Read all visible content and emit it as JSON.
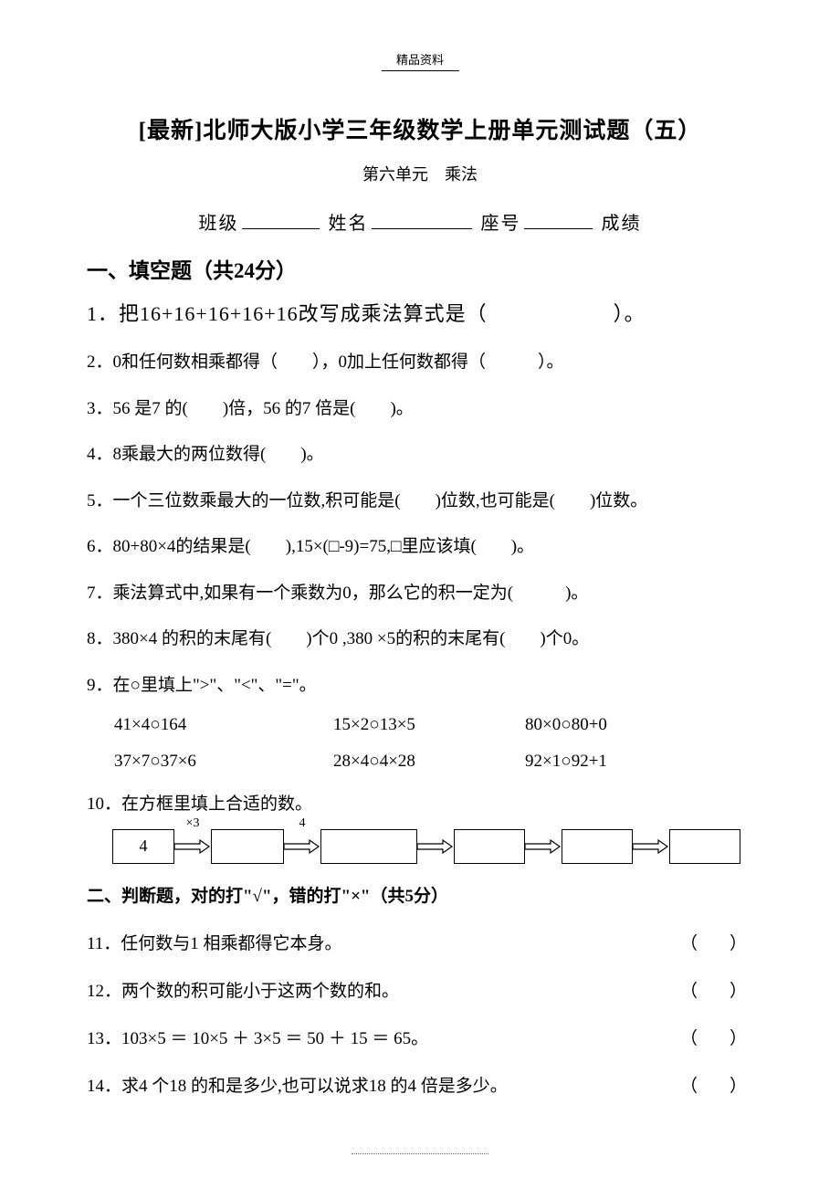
{
  "header": {
    "label": "精品资料"
  },
  "title": "[最新]北师大版小学三年级数学上册单元测试题（五）",
  "subtitle": "第六单元　乘法",
  "info": {
    "class_label": "班级",
    "name_label": "姓名",
    "seat_label": "座号",
    "score_label": "成绩",
    "blank_widths": {
      "class": 85,
      "name": 110,
      "seat": 75
    }
  },
  "section1": {
    "heading": "一、填空题（共24分）",
    "q1": "1．把16+16+16+16+16改写成乘法算式是（　　　　　　）。",
    "q2": "2．0和任何数相乘都得（　　），0加上任何数都得（　　　）。",
    "q3": "3．56 是7 的(　　)倍，56 的7 倍是(　　)。",
    "q4": "4．8乘最大的两位数得(　　)。",
    "q5": "5．一个三位数乘最大的一位数,积可能是(　　)位数,也可能是(　　)位数。",
    "q6": "6．80+80×4的结果是(　　),15×(□-9)=75,□里应该填(　　)。",
    "q7": "7．乘法算式中,如果有一个乘数为0，那么它的积一定为(　　　)。",
    "q8": "8．380×4 的积的末尾有(　　)个0 ,380 ×5的积的末尾有(　　)个0。",
    "q9_intro": "9．在○里填上\">\"、\"<\"、\"=\"。",
    "q9_row1": {
      "c1": "41×4○164",
      "c2": "15×2○13×5",
      "c3": "80×0○80+0"
    },
    "q9_row2": {
      "c1": "37×7○37×6",
      "c2": "28×4○4×28",
      "c3": "92×1○92+1"
    },
    "q10_intro": "10．在方框里填上合适的数。"
  },
  "flowchart": {
    "boxes": [
      {
        "value": "4",
        "width": 68
      },
      {
        "value": "",
        "width": 80
      },
      {
        "value": "",
        "width": 106
      },
      {
        "value": "",
        "width": 78
      },
      {
        "value": "",
        "width": 78
      },
      {
        "value": "",
        "width": 78
      }
    ],
    "arrows": [
      {
        "label": "×3",
        "width": 40
      },
      {
        "label": "4",
        "width": 40
      },
      {
        "label": "",
        "width": 40
      },
      {
        "label": "",
        "width": 40
      },
      {
        "label": "",
        "width": 40
      }
    ]
  },
  "section2": {
    "heading": "二、判断题，对的打\"√\"，错的打\"×\"（共5分）",
    "q11": "11．任何数与1 相乘都得它本身。",
    "q12": "12．两个数的积可能小于这两个数的和。",
    "q13": "13．103×5 ＝ 10×5 ＋ 3×5 ＝ 50 ＋ 15 ＝ 65。",
    "q14": "14．求4 个18 的和是多少,也可以说求18 的4 倍是多少。"
  },
  "bracket_text": "（　）"
}
